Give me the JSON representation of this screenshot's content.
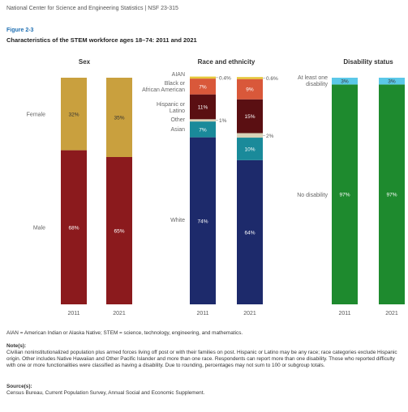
{
  "header": "National Center for Science and Engineering Statistics  |  NSF 23-315",
  "figure_label": "Figure 2-3",
  "title": "Characteristics of the STEM workforce ages 18–74: 2011 and 2021",
  "chart_data": [
    {
      "type": "bar",
      "stacked": true,
      "title": "Sex",
      "categories": [
        "2011",
        "2021"
      ],
      "series": [
        {
          "name": "Male",
          "values": [
            68,
            65
          ],
          "labels": [
            "68%",
            "65%"
          ],
          "color": "#8b1a1d"
        },
        {
          "name": "Female",
          "values": [
            32,
            35
          ],
          "labels": [
            "32%",
            "35%"
          ],
          "color": "#c9a03e"
        }
      ]
    },
    {
      "type": "bar",
      "stacked": true,
      "title": "Race and ethnicity",
      "categories": [
        "2011",
        "2021"
      ],
      "series": [
        {
          "name": "White",
          "values": [
            74,
            64
          ],
          "labels": [
            "74%",
            "64%"
          ],
          "color": "#1d2a6b"
        },
        {
          "name": "Asian",
          "values": [
            7,
            10
          ],
          "labels": [
            "7%",
            "10%"
          ],
          "color": "#1a8a9a"
        },
        {
          "name": "Other",
          "values": [
            1,
            2
          ],
          "labels": [
            "1%",
            "2%"
          ],
          "color": "#d8d2b8"
        },
        {
          "name": "Hispanic or Latino",
          "values": [
            11,
            15
          ],
          "labels": [
            "11%",
            "15%"
          ],
          "color": "#5a0f12"
        },
        {
          "name": "Black or African American",
          "values": [
            7,
            9
          ],
          "labels": [
            "7%",
            "9%"
          ],
          "color": "#d9583a"
        },
        {
          "name": "AIAN",
          "values": [
            0.4,
            0.6
          ],
          "labels": [
            "0.4%",
            "0.6%"
          ],
          "color": "#e6c83a"
        }
      ]
    },
    {
      "type": "bar",
      "stacked": true,
      "title": "Disability status",
      "categories": [
        "2011",
        "2021"
      ],
      "series": [
        {
          "name": "No disability",
          "values": [
            97,
            97
          ],
          "labels": [
            "97%",
            "97%"
          ],
          "color": "#1e8a2e"
        },
        {
          "name": "At least one disability",
          "values": [
            3,
            3
          ],
          "labels": [
            "3%",
            "3%"
          ],
          "color": "#5bc8e8"
        }
      ]
    }
  ],
  "footer": {
    "abbreviations": "AIAN = American Indian or Alaska Native; STEM = science, technology, engineering, and mathematics.",
    "notes_heading": "Note(s):",
    "notes": "Civilian noninstitutionalized population plus armed forces living off post or with their families on post. Hispanic or Latino may be any race; race categories exclude Hispanic origin. Other includes Native Hawaiian and Other Pacific Islander and more than one race. Respondents can report more than one disability. Those who reported difficulty with one or more functionalities were classified as having a disability. Due to rounding, percentages may not sum to 100 or subgroup totals.",
    "source_heading": "Source(s):",
    "source": "Census Bureau, Current Population Survey, Annual Social and Economic Supplement."
  }
}
